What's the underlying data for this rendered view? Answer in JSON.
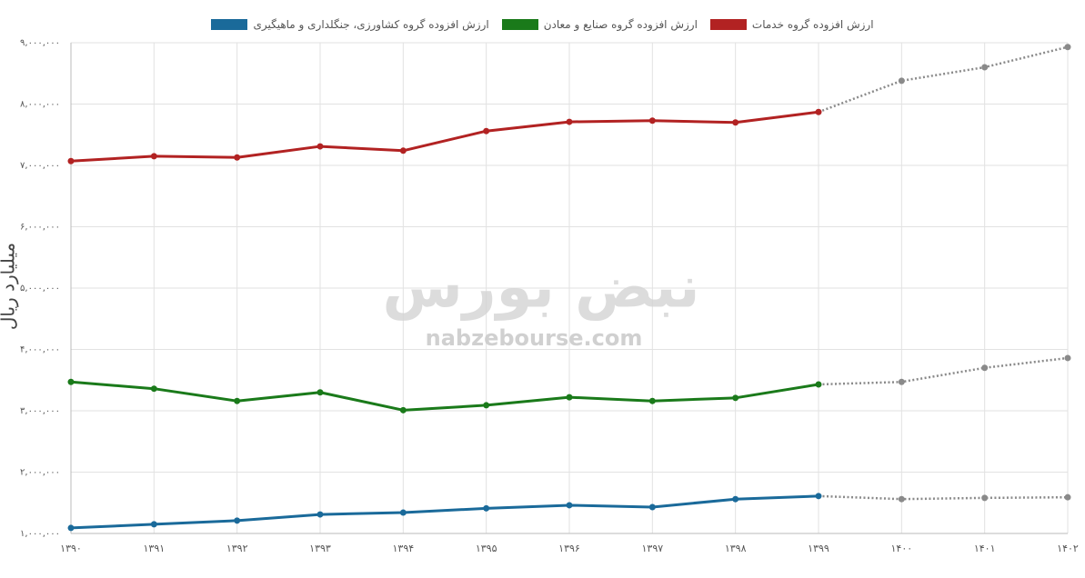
{
  "chart_data": {
    "type": "line",
    "y_label": "میلیارد ریال",
    "watermark": {
      "title": "نبض بورس",
      "site": "nabzebourse.com"
    },
    "categories": [
      "۱۳۹۰",
      "۱۳۹۱",
      "۱۳۹۲",
      "۱۳۹۳",
      "۱۳۹۴",
      "۱۳۹۵",
      "۱۳۹۶",
      "۱۳۹۷",
      "۱۳۹۸",
      "۱۳۹۹",
      "۱۴۰۰",
      "۱۴۰۱",
      "۱۴۰۲"
    ],
    "series": [
      {
        "name": "ارزش افزوده گروه کشاورزی، جنگلداری و ماهیگیری",
        "color": "#1a6a9a",
        "values": [
          1090000,
          1150000,
          1210000,
          1310000,
          1340000,
          1410000,
          1460000,
          1430000,
          1560000,
          1610000,
          1560000,
          1580000,
          1590000
        ]
      },
      {
        "name": "ارزش افزوده گروه صنایع و معادن",
        "color": "#1a7a1a",
        "values": [
          3470000,
          3360000,
          3160000,
          3300000,
          3010000,
          3090000,
          3220000,
          3160000,
          3210000,
          3430000,
          3470000,
          3700000,
          3860000
        ]
      },
      {
        "name": "ارزش افزوده گروه خدمات",
        "color": "#b22222",
        "values": [
          7070000,
          7150000,
          7130000,
          7310000,
          7240000,
          7560000,
          7710000,
          7730000,
          7700000,
          7870000,
          8380000,
          8600000,
          8930000
        ]
      }
    ],
    "projection": {
      "from_index": 9,
      "color": "#8a8a8a",
      "style": "dotted"
    },
    "ylim": [
      1000000,
      9000000
    ],
    "yticks": [
      {
        "value": 1000000,
        "label": "۱,۰۰۰,۰۰۰"
      },
      {
        "value": 2000000,
        "label": "۲,۰۰۰,۰۰۰"
      },
      {
        "value": 3000000,
        "label": "۳,۰۰۰,۰۰۰"
      },
      {
        "value": 4000000,
        "label": "۴,۰۰۰,۰۰۰"
      },
      {
        "value": 5000000,
        "label": "۵,۰۰۰,۰۰۰"
      },
      {
        "value": 6000000,
        "label": "۶,۰۰۰,۰۰۰"
      },
      {
        "value": 7000000,
        "label": "۷,۰۰۰,۰۰۰"
      },
      {
        "value": 8000000,
        "label": "۸,۰۰۰,۰۰۰"
      },
      {
        "value": 9000000,
        "label": "۹,۰۰۰,۰۰۰"
      }
    ],
    "grid": true
  }
}
